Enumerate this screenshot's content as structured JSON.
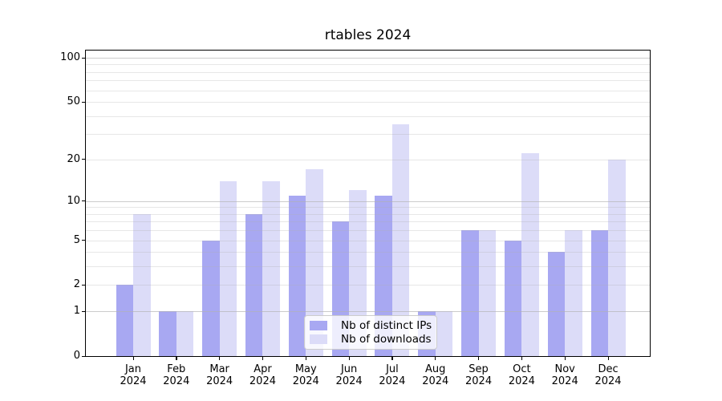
{
  "chart_data": {
    "type": "bar",
    "title": "rtables 2024",
    "categories": [
      "Jan",
      "Feb",
      "Mar",
      "Apr",
      "May",
      "Jun",
      "Jul",
      "Aug",
      "Sep",
      "Oct",
      "Nov",
      "Dec"
    ],
    "category_year": "2024",
    "series": [
      {
        "name": "Nb of distinct IPs",
        "color": "#a8a8f2",
        "values": [
          2,
          1,
          5,
          8,
          11,
          7,
          11,
          1,
          6,
          5,
          4,
          6
        ]
      },
      {
        "name": "Nb of downloads",
        "color": "#dcdcf8",
        "values": [
          8,
          1,
          14,
          14,
          17,
          12,
          35,
          1,
          6,
          22,
          6,
          20
        ]
      }
    ],
    "xlabel": "",
    "ylabel": "",
    "ylim": [
      0,
      112
    ],
    "y_axis": {
      "scale": "log10(1+v)",
      "ticks": [
        {
          "label": "0",
          "value": 0
        },
        {
          "label": "1",
          "value": 1
        },
        {
          "label": "2",
          "value": 2
        },
        {
          "label": "5",
          "value": 5
        },
        {
          "label": "10",
          "value": 10
        },
        {
          "label": "20",
          "value": 20
        },
        {
          "label": "50",
          "value": 50
        },
        {
          "label": "100",
          "value": 100
        }
      ],
      "major_gridlines": [
        1,
        10,
        100
      ],
      "minor_gridlines": [
        2,
        3,
        4,
        5,
        6,
        7,
        8,
        9,
        20,
        30,
        40,
        50,
        60,
        70,
        80,
        90
      ]
    },
    "grid": "on",
    "grid_above_bars": true,
    "legend_position": "lower center"
  },
  "colors": {
    "spine": "#000000",
    "major_grid": "rgba(176,176,176,0.65)",
    "minor_grid": "rgba(176,176,176,0.30)",
    "background": "#ffffff"
  }
}
